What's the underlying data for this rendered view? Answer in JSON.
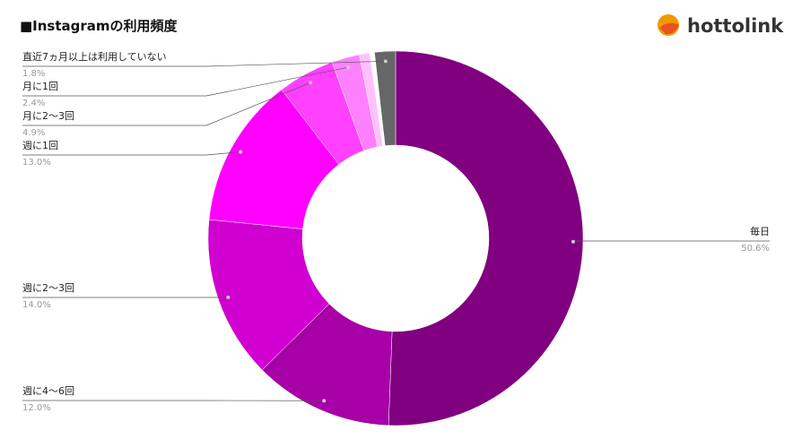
{
  "logo": "hottolink",
  "chart_data": {
    "type": "donut",
    "title": "■Instagramの利用頻度",
    "categories": [
      "毎日",
      "週に4〜6回",
      "週に2〜3回",
      "週に1回",
      "月に2〜3回",
      "月に1回",
      null,
      null,
      "直近7ヵ月以上は利用していない"
    ],
    "values": [
      50.6,
      12.0,
      14.0,
      13.0,
      4.9,
      2.4,
      0.9,
      0.4,
      1.8
    ],
    "value_labels": [
      "50.6%",
      "12.0%",
      "14.0%",
      "13.0%",
      "4.9%",
      "2.4%",
      null,
      null,
      "1.8%"
    ],
    "colors": [
      "#800080",
      "#a600a6",
      "#d000d0",
      "#ff00ff",
      "#ff40ff",
      "#ff80ff",
      "#ffc0ff",
      "#ffffff",
      "#666666"
    ]
  }
}
